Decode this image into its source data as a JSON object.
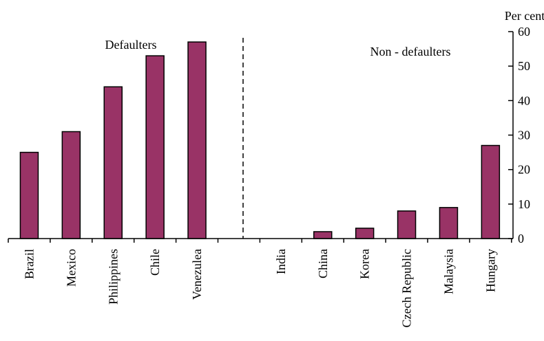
{
  "chart_data": {
    "type": "bar",
    "ylabel": "Per cent",
    "ylim": [
      0,
      60
    ],
    "y_ticks": [
      0,
      10,
      20,
      30,
      40,
      50,
      60
    ],
    "y_axis_position": "right",
    "bar_color": "#993366",
    "bar_edge_color": "#000000",
    "grid": false,
    "groups": [
      {
        "label": "Defaulters",
        "categories": [
          "Brazil",
          "Mexico",
          "Philippines",
          "Chile",
          "Venezulea"
        ],
        "values": [
          25,
          31,
          44,
          53,
          57
        ]
      },
      {
        "label": "Non - defaulters",
        "categories": [
          "India",
          "China",
          "Korea",
          "Czech Republic",
          "Malaysia",
          "Hungary"
        ],
        "values": [
          0,
          2,
          3,
          8,
          9,
          27
        ]
      }
    ],
    "separator": "dashed vertical line between groups"
  }
}
